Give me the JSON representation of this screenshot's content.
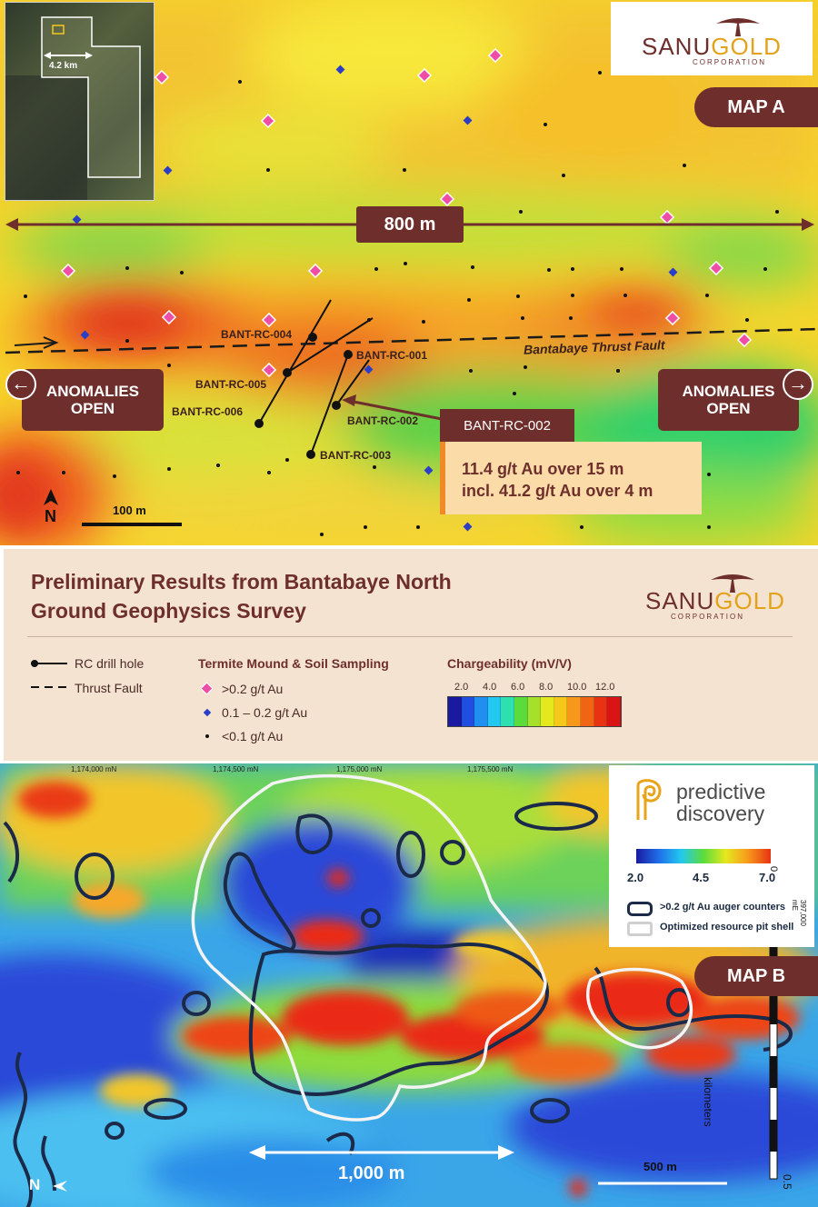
{
  "map_a": {
    "tag": "MAP A",
    "scale_top": "800 m",
    "inset_scale": "4.2 km",
    "scale_bar": "100 m",
    "north": "N",
    "fault_label": "Bantabaye Thrust Fault",
    "anomalies_left": "ANOMALIES OPEN",
    "anomalies_right": "ANOMALIES OPEN",
    "drill_holes": [
      "BANT-RC-004",
      "BANT-RC-001",
      "BANT-RC-005",
      "BANT-RC-006",
      "BANT-RC-002",
      "BANT-RC-003"
    ],
    "callout": {
      "hole": "BANT-RC-002",
      "line1": "11.4 g/t Au over 15 m",
      "line2": "incl. 41.2 g/t Au over 4 m"
    }
  },
  "logo": {
    "name_a": "SANU",
    "name_b": "GOLD",
    "sub": "CORPORATION"
  },
  "legend": {
    "title_line1": "Preliminary Results from Bantabaye North",
    "title_line2": "Ground Geophysics Survey",
    "rc_drill_hole": "RC drill hole",
    "thrust_fault": "Thrust Fault",
    "sampling_head": "Termite Mound & Soil Sampling",
    "sample_high": ">0.2 g/t Au",
    "sample_mid": "0.1 – 0.2 g/t Au",
    "sample_low": "<0.1 g/t Au",
    "charge_head": "Chargeability (mV/V)",
    "charge_ticks": [
      "2.0",
      "4.0",
      "6.0",
      "8.0",
      "10.0",
      "12.0"
    ],
    "colors": [
      "#1a1aa0",
      "#1f4ee0",
      "#1f8ff0",
      "#22c8f0",
      "#2ee0b0",
      "#5cdc3c",
      "#a6e02a",
      "#e6e81e",
      "#f6c81a",
      "#f7981a",
      "#f06414",
      "#e83214",
      "#d81414"
    ]
  },
  "map_b": {
    "tag": "MAP B",
    "northings": [
      "1,174,000 mN",
      "1,174,500 mN",
      "1,175,000 mN",
      "1,175,500 mN"
    ],
    "easting": "397,000 mE",
    "predictive_line1": "predictive",
    "predictive_line2": "discovery",
    "ramp_ticks": [
      "2.0",
      "4.5",
      "7.0"
    ],
    "legend_contour": ">0.2 g/t Au auger counters",
    "legend_pit": "Optimized resource pit  shell",
    "scale_1000": "1,000 m",
    "scale_500": "500 m",
    "km_label": "kilometers",
    "km_0": "0",
    "km_05": "0.5",
    "north": "N"
  }
}
